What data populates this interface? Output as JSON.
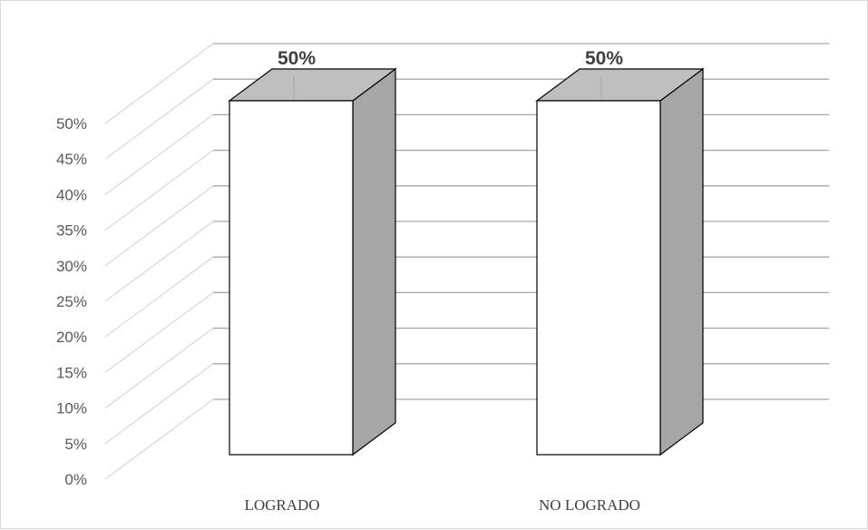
{
  "chart_data": {
    "type": "bar",
    "style": "3d-column",
    "title": "",
    "xlabel": "",
    "ylabel": "",
    "categories": [
      "LOGRADO",
      "NO LOGRADO"
    ],
    "values": [
      50,
      50
    ],
    "data_labels": [
      "50%",
      "50%"
    ],
    "ylim": [
      0,
      50
    ],
    "y_ticks": [
      "0%",
      "5%",
      "10%",
      "15%",
      "20%",
      "25%",
      "30%",
      "35%",
      "40%",
      "45%",
      "50%"
    ],
    "grid": true,
    "legend": "none",
    "colors": {
      "bar_front": "#ffffff",
      "bar_top": "#bfbfbf",
      "bar_side": "#a6a6a6",
      "bar_outline": "#000000",
      "gridline": "#a6a6a6",
      "wall_line": "#d0d0d0"
    }
  }
}
